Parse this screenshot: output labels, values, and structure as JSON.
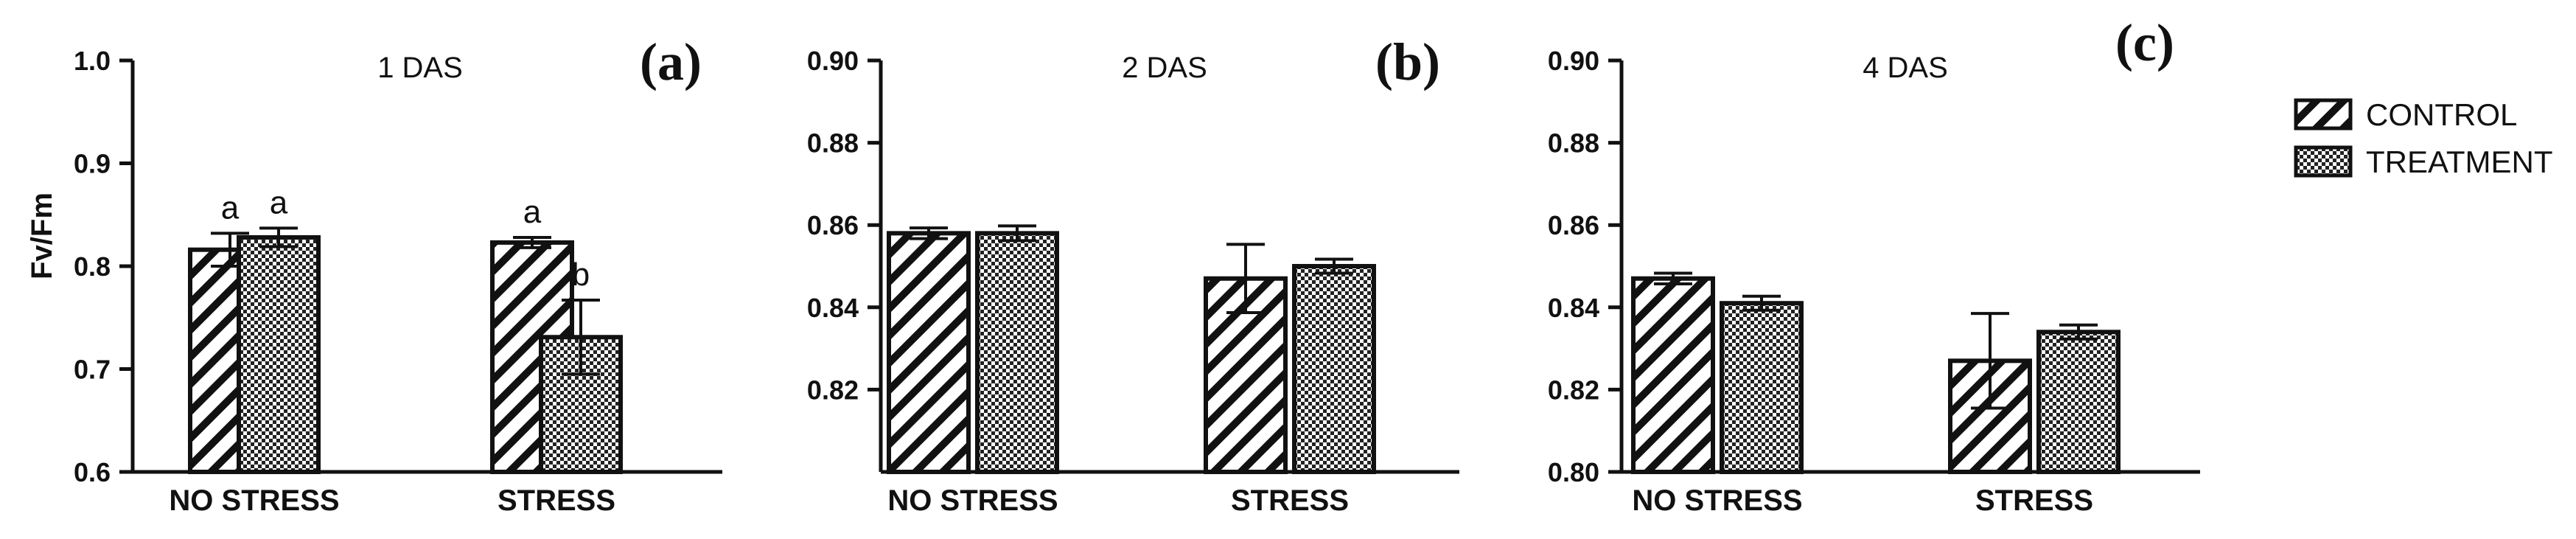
{
  "legend": {
    "items": [
      {
        "label": "CONTROL",
        "pattern": "hatch"
      },
      {
        "label": "TREATMENT",
        "pattern": "checker"
      }
    ]
  },
  "ylabel": "Fv/Fm",
  "colors": {
    "axis": "#111111",
    "bar_fill": "#ffffff",
    "pattern": "#111111"
  },
  "chart_data": [
    {
      "type": "bar",
      "panel": "(a)",
      "title": "1 DAS",
      "categories": [
        "NO STRESS",
        "STRESS"
      ],
      "ylim": [
        0.6,
        1.0
      ],
      "yticks": [
        "0.6",
        "0.7",
        "0.8",
        "0.9",
        "1.0"
      ],
      "ylabel": "Fv/Fm",
      "series": [
        {
          "name": "CONTROL",
          "values": [
            0.816,
            0.823
          ],
          "errors": [
            0.016,
            0.005
          ],
          "labels": [
            "a",
            "a"
          ]
        },
        {
          "name": "TREATMENT",
          "values": [
            0.828,
            0.731
          ],
          "errors": [
            0.009,
            0.036
          ],
          "labels": [
            "a",
            "b"
          ]
        }
      ]
    },
    {
      "type": "bar",
      "panel": "(b)",
      "title": "2 DAS",
      "categories": [
        "NO STRESS",
        "STRESS"
      ],
      "ylim": [
        0.8,
        0.9
      ],
      "yticks": [
        "0.82",
        "0.84",
        "0.86",
        "0.88",
        "0.90"
      ],
      "series": [
        {
          "name": "CONTROL",
          "values": [
            0.858,
            0.847
          ],
          "errors": [
            0.0013,
            0.0083
          ]
        },
        {
          "name": "TREATMENT",
          "values": [
            0.858,
            0.85
          ],
          "errors": [
            0.0018,
            0.0017
          ]
        }
      ]
    },
    {
      "type": "bar",
      "panel": "(c)",
      "title": "4 DAS",
      "categories": [
        "NO STRESS",
        "STRESS"
      ],
      "ylim": [
        0.8,
        0.9
      ],
      "yticks": [
        "0.80",
        "0.82",
        "0.84",
        "0.86",
        "0.88",
        "0.90"
      ],
      "series": [
        {
          "name": "CONTROL",
          "values": [
            0.847,
            0.827
          ],
          "errors": [
            0.0013,
            0.0115
          ]
        },
        {
          "name": "TREATMENT",
          "values": [
            0.841,
            0.834
          ],
          "errors": [
            0.0017,
            0.0017
          ]
        }
      ]
    }
  ]
}
